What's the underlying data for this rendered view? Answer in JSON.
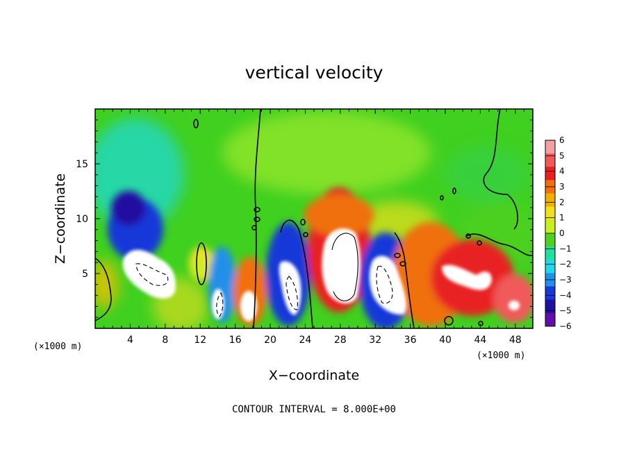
{
  "chart_data": {
    "type": "heatmap",
    "title": "vertical velocity",
    "xlabel": "X−coordinate",
    "ylabel": "Z−coordinate",
    "x_unit": "(×1000 m)",
    "x_unit_right": "(×1000 m)",
    "xlim": [
      0,
      50
    ],
    "ylim": [
      0,
      20
    ],
    "xticks": [
      4,
      8,
      12,
      16,
      20,
      24,
      28,
      32,
      36,
      40,
      44,
      48
    ],
    "yticks": [
      5,
      10,
      15
    ],
    "colorbar": {
      "levels": [
        6,
        5,
        4,
        3,
        2,
        1,
        0,
        -1,
        -2,
        -3,
        -4,
        -5,
        -6
      ],
      "labels": [
        "6",
        "5",
        "4",
        "3",
        "2",
        "1",
        "0",
        "−1",
        "−2",
        "−3",
        "−4",
        "−5",
        "−6"
      ],
      "colors": [
        "#f4a0a0",
        "#f05a5a",
        "#e82020",
        "#f07010",
        "#f0b000",
        "#f0e020",
        "#c8f020",
        "#50d020",
        "#20e0a0",
        "#20d8e8",
        "#2090e8",
        "#1838d8",
        "#2010a0",
        "#6010a8"
      ]
    },
    "features": [
      {
        "x": 6.5,
        "z": 5.5,
        "w": -6.5
      },
      {
        "x": 14.5,
        "z": 2.5,
        "w": -6.5
      },
      {
        "x": 17.8,
        "z": 2.2,
        "w": 6.5
      },
      {
        "x": 22.5,
        "z": 3.5,
        "w": -6.5
      },
      {
        "x": 28.5,
        "z": 6.0,
        "w": 7.0
      },
      {
        "x": 33.0,
        "z": 3.5,
        "w": -6.5
      },
      {
        "x": 42.0,
        "z": 4.5,
        "w": 6.5
      },
      {
        "x": 48.0,
        "z": 2.5,
        "w": 6.5
      },
      {
        "x": 5.5,
        "z": 9.5,
        "w": -4.0
      },
      {
        "x": 5.0,
        "z": 15.0,
        "w": -2.0
      },
      {
        "x": 11.8,
        "z": 6.0,
        "w": 1.5
      },
      {
        "x": 29.5,
        "z": 10.0,
        "w": 2.0
      },
      {
        "x": 38.0,
        "z": 8.0,
        "w": 3.0
      },
      {
        "x": 1.0,
        "z": 4.0,
        "w": 2.0
      }
    ],
    "contour_interval_text": "CONTOUR INTERVAL =  8.000E+00"
  }
}
